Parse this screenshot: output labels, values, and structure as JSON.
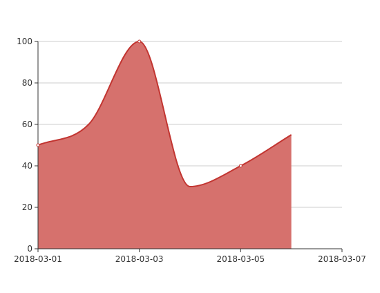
{
  "chart_data": {
    "type": "area",
    "title": "",
    "xlabel": "",
    "ylabel": "",
    "x_axis_type": "time",
    "x_ticks": [
      "2018-03-01",
      "2018-03-03",
      "2018-03-05",
      "2018-03-07"
    ],
    "y_ticks": [
      0,
      20,
      40,
      60,
      80,
      100
    ],
    "xlim": [
      "2018-03-01",
      "2018-03-07"
    ],
    "ylim": [
      0,
      100
    ],
    "grid": "horizontal",
    "legend": "none",
    "series": [
      {
        "x": [
          "2018-03-01",
          "2018-03-02",
          "2018-03-03",
          "2018-03-04",
          "2018-03-05",
          "2018-03-06"
        ],
        "values": [
          50,
          60,
          100,
          30,
          40,
          55
        ],
        "smooth": true,
        "fill_color": "#d6716d",
        "line_color": "#c23531",
        "marked_points": [
          "2018-03-01",
          "2018-03-03",
          "2018-03-05"
        ]
      }
    ]
  }
}
